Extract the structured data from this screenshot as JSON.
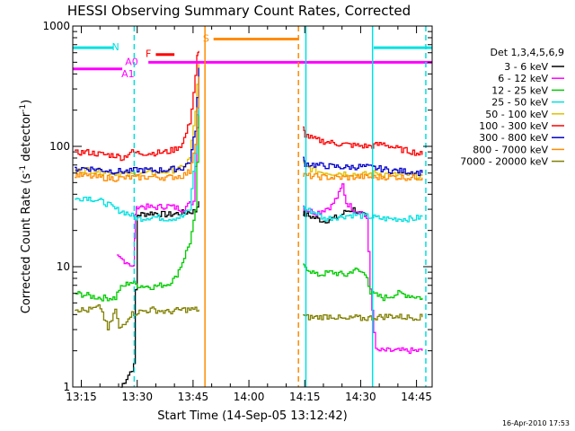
{
  "chart_data": {
    "type": "line",
    "title": "HESSI Observing Summary Count Rates, Corrected",
    "xlabel": "Start Time (14-Sep-05 13:12:42)",
    "ylabel": "Corrected Count Rate (s⁻¹ detector⁻¹)",
    "ylabel_base": "Corrected Count Rate (s",
    "ylabel_mid": " detector",
    "ylabel_end": ")",
    "ylabel_sup": "-1",
    "yscale": "log",
    "ylim": [
      1,
      1000
    ],
    "xlim_minutes": [
      12.7,
      109.2
    ],
    "x_ticks": [
      {
        "label": "13:15",
        "min": 15
      },
      {
        "label": "13:30",
        "min": 30
      },
      {
        "label": "13:45",
        "min": 45
      },
      {
        "label": "14:00",
        "min": 60
      },
      {
        "label": "14:15",
        "min": 75
      },
      {
        "label": "14:30",
        "min": 90
      },
      {
        "label": "14:45",
        "min": 105
      }
    ],
    "y_ticks": [
      {
        "label": "1",
        "value": 1
      },
      {
        "label": "10",
        "value": 10
      },
      {
        "label": "100",
        "value": 100
      },
      {
        "label": "1000",
        "value": 1000
      }
    ],
    "legend_title": "Det 1,3,4,5,6,9",
    "legend_placement": "right",
    "series": [
      {
        "name": "3 - 6 keV",
        "color": "#000000",
        "segments": [
          {
            "t": [
              25.5,
              29,
              30,
              34,
              38,
              42,
              45.5,
              46.5
            ],
            "y": [
              1,
              1.5,
              27,
              28,
              27,
              28,
              29,
              35
            ]
          },
          {
            "t": [
              74.5,
              75,
              80,
              84,
              86,
              88,
              90,
              91.5
            ],
            "y": [
              28,
              27,
              24,
              26,
              29,
              30,
              27,
              26
            ]
          }
        ]
      },
      {
        "name": "6 - 12 keV",
        "color": "#ff00ff",
        "segments": [
          {
            "t": [
              24.5,
              27,
              29,
              29.5,
              30,
              34,
              38,
              42,
              45,
              46.5
            ],
            "y": [
              12,
              11,
              10,
              28,
              32,
              31,
              32,
              30,
              35,
              300
            ]
          },
          {
            "t": [
              74.5,
              75,
              78,
              82,
              84,
              85,
              86,
              88,
              90.5,
              91.5,
              92.5,
              94,
              106.5
            ],
            "y": [
              32,
              30,
              28,
              32,
              40,
              48,
              34,
              30,
              28,
              25,
              6.5,
              2,
              2
            ]
          }
        ]
      },
      {
        "name": "12 - 25 keV",
        "color": "#00cc00",
        "segments": [
          {
            "t": [
              13.2,
              16,
              20,
              24,
              25,
              28,
              30,
              34,
              38,
              40,
              42,
              44,
              45.5,
              46.5
            ],
            "y": [
              6,
              5.8,
              5.5,
              5.5,
              6.5,
              7.5,
              7,
              6.8,
              7.2,
              8,
              11,
              16,
              28,
              200
            ]
          },
          {
            "t": [
              74.5,
              75,
              78,
              82,
              86,
              88,
              90,
              91.5,
              92.5,
              96,
              100,
              106.5
            ],
            "y": [
              10,
              10,
              8.5,
              9,
              8.5,
              9.5,
              9,
              8.5,
              6,
              5.5,
              6,
              5.5
            ]
          }
        ]
      },
      {
        "name": "25 - 50 keV",
        "color": "#00e0e0",
        "segments": [
          {
            "t": [
              13.2,
              16,
              20,
              22,
              24,
              27,
              30,
              34,
              38,
              42,
              44,
              45.5,
              46.5
            ],
            "y": [
              36,
              38,
              35,
              33,
              30,
              28,
              25,
              26,
              25,
              26,
              30,
              90,
              350
            ]
          },
          {
            "t": [
              74.5,
              75,
              78,
              80,
              84,
              88,
              92,
              96,
              100,
              104,
              106.5
            ],
            "y": [
              32,
              30,
              28,
              25,
              26,
              27,
              26,
              25,
              25,
              25,
              26
            ]
          }
        ]
      },
      {
        "name": "50 - 100 keV",
        "color": "#e0c000",
        "segments": [
          {
            "t": [
              13.2,
              16,
              20,
              24,
              28,
              30,
              34,
              38,
              42,
              44,
              45.5,
              46.5
            ],
            "y": [
              62,
              64,
              62,
              60,
              58,
              60,
              60,
              62,
              66,
              80,
              200,
              500
            ]
          },
          {
            "t": [
              74.5,
              75,
              78,
              82,
              86,
              90,
              94,
              98,
              102,
              106.5
            ],
            "y": [
              72,
              68,
              62,
              60,
              60,
              58,
              60,
              58,
              58,
              57
            ]
          }
        ]
      },
      {
        "name": "100 - 300 keV",
        "color": "#ff0000",
        "segments": [
          {
            "t": [
              13.2,
              16,
              20,
              24,
              26,
              28,
              30,
              34,
              38,
              40,
              42,
              44,
              45,
              46,
              46.5
            ],
            "y": [
              88,
              90,
              86,
              84,
              80,
              90,
              88,
              88,
              90,
              95,
              105,
              160,
              280,
              550,
              620
            ]
          },
          {
            "t": [
              74.5,
              75,
              77,
              80,
              84,
              88,
              92,
              96,
              100,
              104,
              106.5
            ],
            "y": [
              140,
              125,
              115,
              110,
              105,
              102,
              100,
              105,
              95,
              90,
              85
            ]
          }
        ]
      },
      {
        "name": "300 - 800 keV",
        "color": "#0000cc",
        "segments": [
          {
            "t": [
              13.2,
              16,
              20,
              24,
              28,
              30,
              34,
              38,
              42,
              44,
              45.5,
              46.5
            ],
            "y": [
              65,
              66,
              64,
              62,
              62,
              64,
              63,
              64,
              66,
              75,
              140,
              450
            ]
          },
          {
            "t": [
              74.5,
              75,
              78,
              82,
              86,
              90,
              94,
              98,
              102,
              106.5
            ],
            "y": [
              78,
              72,
              70,
              68,
              67,
              68,
              66,
              63,
              62,
              60
            ]
          }
        ]
      },
      {
        "name": "800 - 7000 keV",
        "color": "#ff8c00",
        "segments": [
          {
            "t": [
              13.2,
              16,
              20,
              24,
              28,
              30,
              34,
              38,
              42,
              44,
              45.5,
              46.5
            ],
            "y": [
              58,
              57,
              55,
              54,
              55,
              55,
              56,
              55,
              57,
              62,
              110,
              380
            ]
          },
          {
            "t": [
              74.5,
              75,
              78,
              82,
              86,
              90,
              94,
              98,
              102,
              106.5
            ],
            "y": [
              58,
              57,
              56,
              55,
              55,
              56,
              55,
              56,
              55,
              55
            ]
          }
        ]
      },
      {
        "name": "7000 - 20000 keV",
        "color": "#808000",
        "segments": [
          {
            "t": [
              13.2,
              16,
              20,
              22,
              24,
              25,
              28,
              30,
              34,
              38,
              42,
              46.5
            ],
            "y": [
              4.5,
              4.3,
              4.6,
              3,
              4.4,
              3,
              4,
              4.2,
              4.4,
              4.2,
              4.4,
              4.4
            ]
          },
          {
            "t": [
              74.5,
              75,
              78,
              82,
              86,
              88,
              90,
              94,
              98,
              102,
              106.5
            ],
            "y": [
              4,
              3.8,
              3.8,
              3.9,
              3.6,
              3.8,
              3.7,
              3.8,
              3.9,
              3.8,
              3.8
            ]
          }
        ]
      }
    ],
    "state_bars": [
      {
        "label": "N",
        "color": "#00e0e0",
        "y": 660,
        "t_start": 12.7,
        "t_end": 23.5,
        "label_min": 24.2
      },
      {
        "label": "N",
        "color": "#00e0e0",
        "y": 660,
        "t_start": 93.5,
        "t_end": 109.2,
        "label_min": null
      },
      {
        "label": "F",
        "color": "#ff0000",
        "y": 580,
        "t_start": 35,
        "t_end": 40,
        "label_min": 33
      },
      {
        "label": "S",
        "color": "#ff8c00",
        "y": 780,
        "t_start": 50.5,
        "t_end": 73.3,
        "label_min": 48.5
      },
      {
        "label": "A0",
        "color": "#ff00ff",
        "y": 500,
        "t_start": 33,
        "t_end": 109.2,
        "label_min": 28.5
      },
      {
        "label": "A1",
        "color": "#ff00ff",
        "y": 440,
        "t_start": 12.7,
        "t_end": 26,
        "label_min": 27.5
      }
    ],
    "vlines": [
      {
        "min": 29.2,
        "color": "#00e0e0",
        "style": "dashed"
      },
      {
        "min": 48.2,
        "color": "#ff8c00",
        "style": "solid"
      },
      {
        "min": 73.3,
        "color": "#ff8c00",
        "style": "dashed"
      },
      {
        "min": 75.3,
        "color": "#00e0e0",
        "style": "solid"
      },
      {
        "min": 93.2,
        "color": "#00e0e0",
        "style": "solid"
      },
      {
        "min": 107.5,
        "color": "#00e0e0",
        "style": "dashed"
      }
    ],
    "grid": false
  },
  "footer_date": "16-Apr-2010 17:53"
}
